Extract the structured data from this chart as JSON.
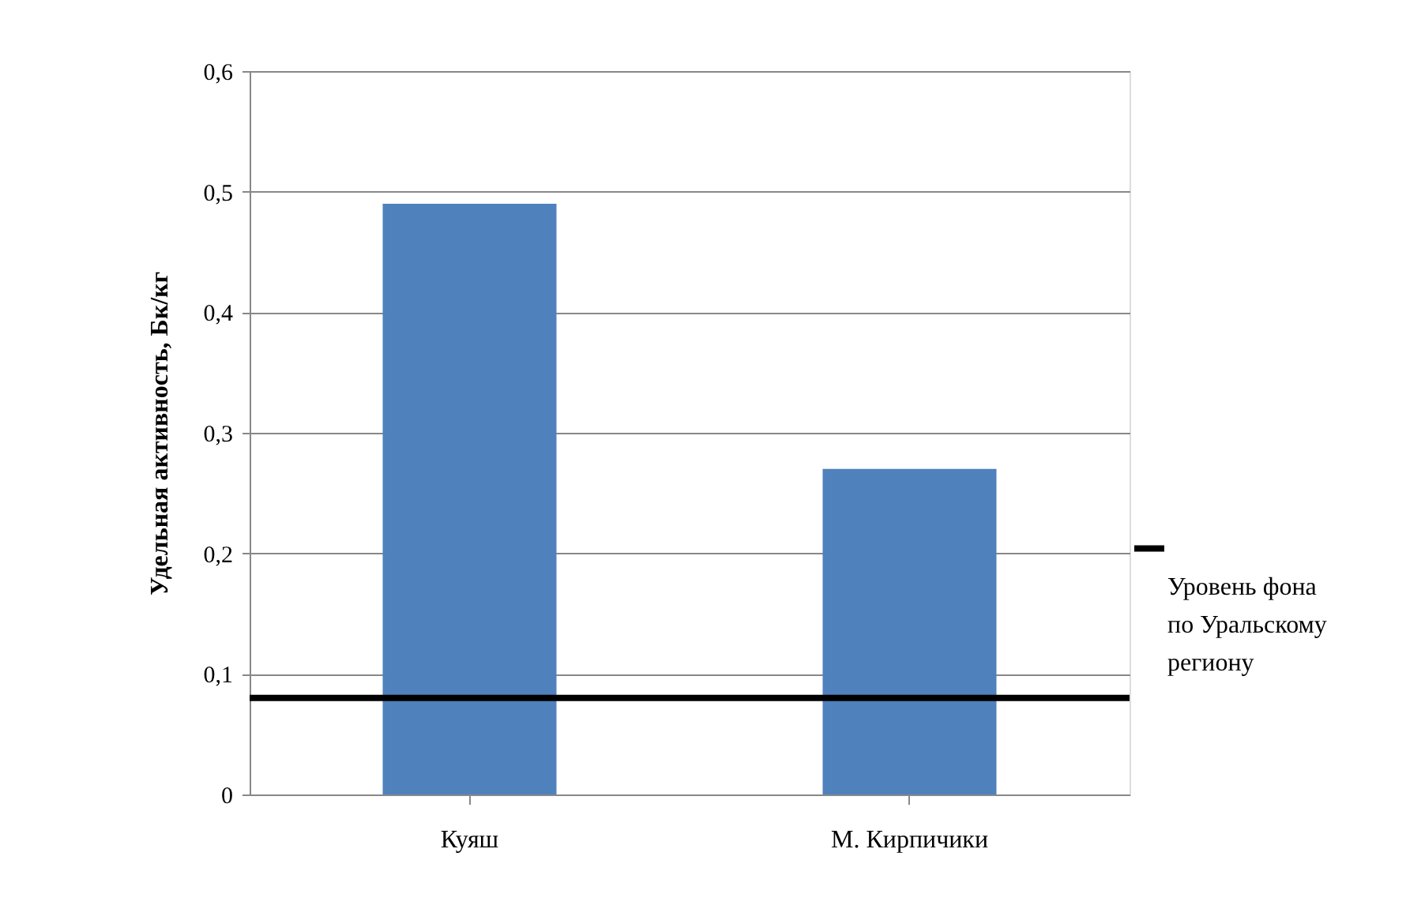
{
  "chart_data": {
    "type": "bar",
    "ylabel": "Удельная активность, Бк/кг",
    "categories": [
      "Куяш",
      "М. Кирпичики"
    ],
    "values": [
      0.49,
      0.27
    ],
    "color": "#4f81bd",
    "ylim": [
      0,
      0.6
    ],
    "yticks": [
      0,
      {
        "value": 0.1,
        "label": "0,1"
      },
      {
        "value": 0.2,
        "label": "0,2"
      },
      {
        "value": 0.3,
        "label": "0,3"
      },
      {
        "value": 0.4,
        "label": "0,4"
      },
      {
        "value": 0.5,
        "label": "0,5"
      },
      {
        "value": 0.6,
        "label": "0,6"
      }
    ],
    "grid": "y",
    "legend": "right",
    "ref_lines": [
      {
        "axis": "y",
        "value": 0.08,
        "label": "Уровень фона по Уральскому региону",
        "color": "#000000"
      }
    ]
  }
}
